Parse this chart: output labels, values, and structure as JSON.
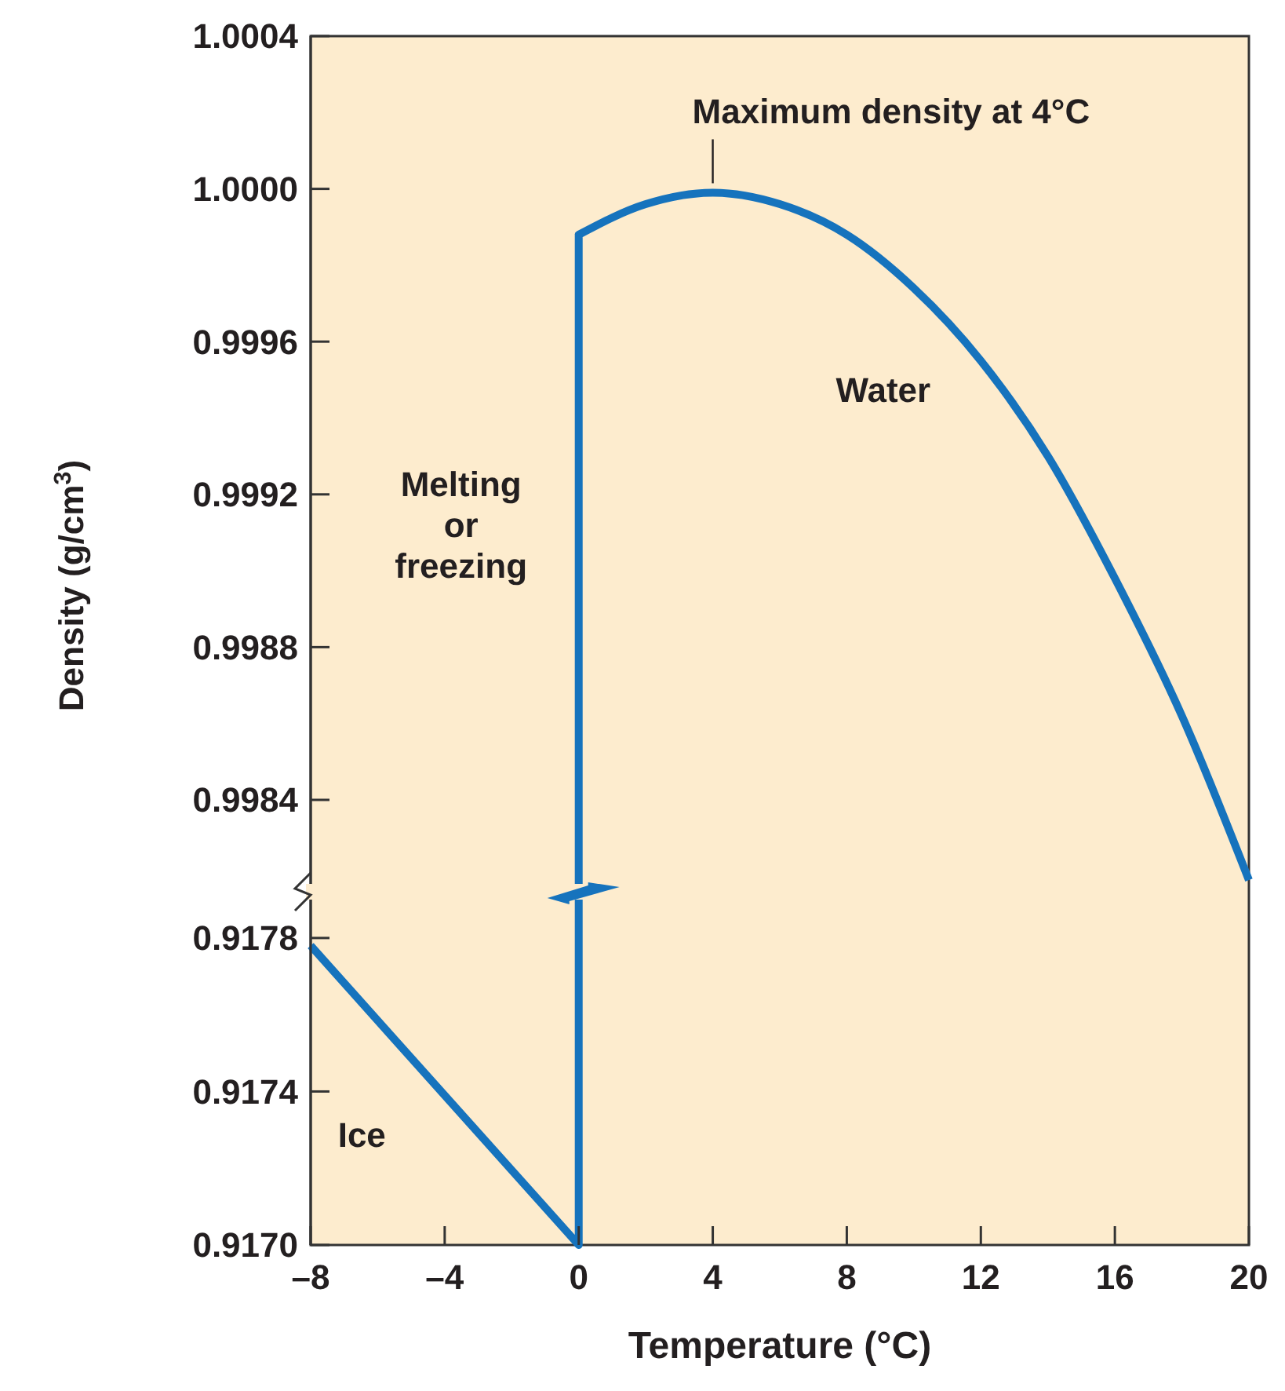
{
  "chart_data": [
    {
      "type": "line",
      "ylabel": "Density (g/cm$^{3}$)",
      "xlim": [
        -8,
        20
      ],
      "ylim": [
        0.99818,
        1.0004
      ],
      "yticks": [
        0.9984,
        0.9988,
        0.9992,
        0.9996,
        {
          "value": 1.0,
          "label": "1.0000"
        },
        1.0004
      ],
      "tick_labels": "y",
      "grid": false,
      "legend": false,
      "marker": "none",
      "line_style": "solid",
      "series": [
        {
          "name": "Water",
          "color": "#1673bd",
          "x": [
            0,
            0,
            2,
            4,
            6,
            8,
            10,
            12,
            14,
            16,
            18,
            20
          ],
          "values": [
            0.99818,
            0.99988,
            0.99996,
            0.99999,
            0.99996,
            0.99988,
            0.99974,
            0.99955,
            0.9993,
            0.99898,
            0.99862,
            0.99819
          ]
        }
      ],
      "annotations": [
        {
          "text": "Maximum density at 4°C",
          "x": 4,
          "y": 0.99999
        },
        {
          "text": "Melting\nor\nfreezing",
          "x": 0,
          "y": 0.99912
        }
      ]
    },
    {
      "type": "line",
      "xlabel": "Temperature (°C)",
      "xlim": [
        -8,
        20
      ],
      "ylim": [
        0.917,
        0.9179
      ],
      "xticks": [
        {
          "value": -8,
          "label": "–8"
        },
        {
          "value": -4,
          "label": "–4"
        },
        0,
        4,
        8,
        12,
        16,
        20
      ],
      "yticks": [
        {
          "value": 0.917,
          "label": "0.9170"
        },
        0.9174,
        0.9178
      ],
      "grid": false,
      "legend": false,
      "marker": "none",
      "line_style": "solid",
      "series": [
        {
          "name": "Ice",
          "color": "#1673bd",
          "x": [
            -8,
            0,
            0
          ],
          "values": [
            0.91778,
            0.917,
            0.9179
          ]
        }
      ]
    }
  ]
}
